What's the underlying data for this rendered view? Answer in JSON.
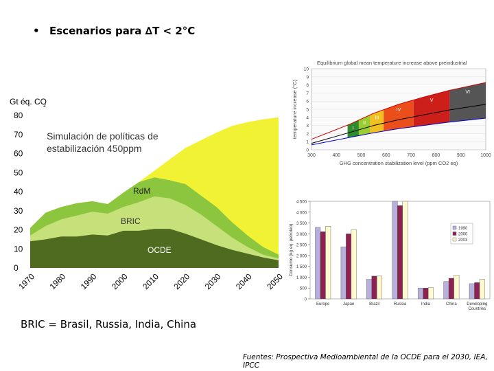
{
  "slide": {
    "bullet": "•",
    "title_prefix": "Escenarios para ",
    "title_delta": "∆",
    "title_suffix": "T < 2°C",
    "note": "BRIC = Brasil, Russia, India, China",
    "sources": "Fuentes: Prospectiva Medioambiental de la OCDE para el 2030, IEA, IPCC"
  },
  "chart_data": [
    {
      "type": "area",
      "ylabel": "Gt éq. CO",
      "ylabel_sub": "2",
      "overlay_text": [
        "Simulación de políticas de",
        "estabilización 450ppm"
      ],
      "x": [
        1970,
        1975,
        1980,
        1985,
        1990,
        1995,
        2000,
        2005,
        2010,
        2015,
        2020,
        2025,
        2030,
        2035,
        2040,
        2045,
        2050
      ],
      "xticks": [
        "1970",
        "1980",
        "1990",
        "2000",
        "2010",
        "2020",
        "2030",
        "2040",
        "2050"
      ],
      "ylim": [
        0,
        80
      ],
      "yticks": [
        "0",
        "10",
        "20",
        "30",
        "40",
        "50",
        "60",
        "70",
        "80"
      ],
      "series": [
        {
          "name": "OCDE",
          "color": "#4e6b20",
          "top": [
            14,
            15,
            16.5,
            16.5,
            17.5,
            17,
            19.5,
            19.5,
            20.5,
            20.5,
            18,
            15,
            12,
            9.5,
            7.5,
            5.5,
            4
          ]
        },
        {
          "name": "BRIC",
          "color": "#c6e07a",
          "top": [
            17,
            22,
            25.5,
            27.5,
            29.5,
            28.5,
            32,
            34.5,
            37.5,
            36.5,
            33,
            28,
            22,
            16,
            11,
            7,
            5
          ]
        },
        {
          "name": "RdM",
          "color": "#8cc63f",
          "top": [
            21,
            29,
            32,
            34,
            35,
            33.5,
            39.5,
            45,
            47.5,
            46,
            44,
            38,
            32,
            24,
            17,
            11,
            7
          ]
        },
        {
          "name": "",
          "color": "#f2f235",
          "top": [
            21,
            29,
            32,
            34,
            35,
            33.5,
            39.5,
            45,
            51,
            57,
            63,
            67,
            71,
            74.5,
            76.5,
            78,
            79
          ]
        }
      ]
    },
    {
      "type": "area",
      "title": "Equilibrium global mean temperature increase above preindustrial",
      "xlabel": "GHG concentration stabilization level (ppm CO2 eq)",
      "ylabel": "temperature increase (°C)",
      "xlim": [
        300,
        1000
      ],
      "ylim": [
        0,
        10
      ],
      "xticks": [
        "300",
        "400",
        "500",
        "600",
        "700",
        "800",
        "900",
        "1000"
      ],
      "yticks": [
        "0",
        "1",
        "2",
        "3",
        "4",
        "5",
        "6",
        "7",
        "8",
        "9",
        "10"
      ],
      "categories": [
        "I",
        "II",
        "III",
        "IV",
        "V",
        "VI"
      ],
      "category_ranges": [
        [
          445,
          490
        ],
        [
          490,
          535
        ],
        [
          535,
          590
        ],
        [
          590,
          710
        ],
        [
          710,
          855
        ],
        [
          855,
          1000
        ]
      ],
      "colors": [
        "#2e8b2e",
        "#9acd32",
        "#f0c020",
        "#e94e1b",
        "#cc1f1a",
        "#555555"
      ],
      "best_estimate": {
        "x": [
          300,
          450,
          550,
          650,
          750,
          850,
          1000
        ],
        "y": [
          0.8,
          2.1,
          3.0,
          3.7,
          4.3,
          4.9,
          5.6
        ]
      },
      "upper": {
        "x": [
          300,
          450,
          550,
          650,
          750,
          850,
          1000
        ],
        "y": [
          1.3,
          3.1,
          4.5,
          5.6,
          6.5,
          7.3,
          8.3
        ]
      },
      "lower": {
        "x": [
          300,
          450,
          550,
          650,
          750,
          850,
          1000
        ],
        "y": [
          0.6,
          1.5,
          2.1,
          2.6,
          3.0,
          3.4,
          3.9
        ]
      }
    },
    {
      "type": "bar",
      "ylabel": "Consumo (kg eq. petroleo)",
      "categories": [
        "Europe",
        "Japan",
        "Brazil",
        "Russia",
        "India",
        "China",
        "Developing Countries"
      ],
      "ylim": [
        0,
        4500
      ],
      "yticks": [
        "0",
        "500",
        "1 000",
        "1 500",
        "2 000",
        "2 500",
        "3 000",
        "3 500",
        "4 000",
        "4 500"
      ],
      "legend": [
        "1990",
        "2000",
        "2003"
      ],
      "series": [
        {
          "name": "1990",
          "color": "#b8b0dc",
          "values": [
            3300,
            2400,
            900,
            4500,
            500,
            800,
            700
          ]
        },
        {
          "name": "2000",
          "color": "#8b2252",
          "values": [
            3100,
            3000,
            1050,
            4300,
            500,
            950,
            750
          ]
        },
        {
          "name": "2003",
          "color": "#fffacd",
          "values": [
            3350,
            3200,
            1050,
            4500,
            520,
            1100,
            900
          ]
        }
      ]
    }
  ]
}
